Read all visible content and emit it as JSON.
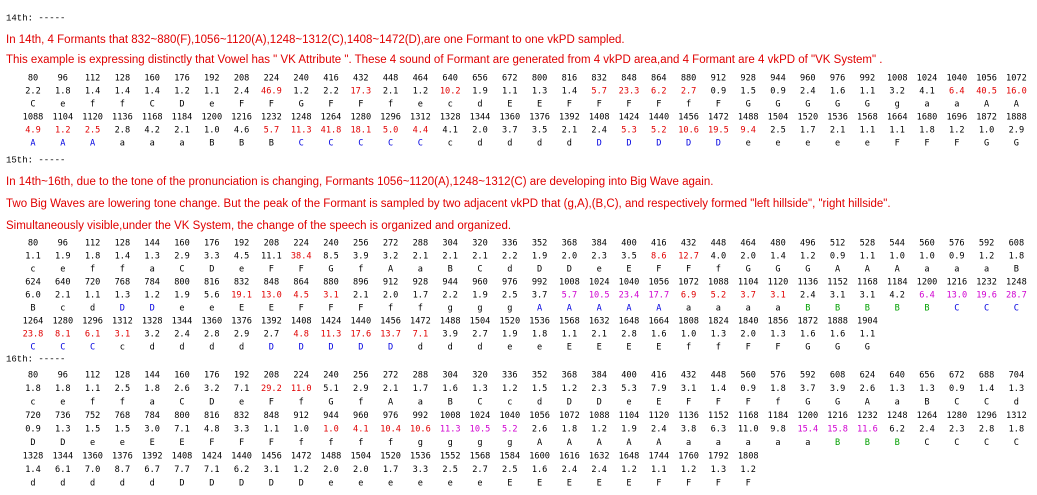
{
  "palette": {
    "k": "#000000",
    "r": "#e00000",
    "b": "#0000e0",
    "m": "#d000d0",
    "g": "#00a000"
  },
  "blocks": [
    {
      "label": "14th: -----",
      "notes": [
        "In 14th, 4 Formants that 832~880(F),1056~1120(A),1248~1312(C),1408~1472(D),are one Formant to one vkPD sampled.",
        "This example is expressing distinctly that Vowel has \" VK Attribute \". These 4 sound of Formant are generated from 4 vkPD area,and 4 Formant are 4 vkPD of \"VK System\" ."
      ],
      "rows": [
        {
          "cells": [
            "80",
            "96",
            "112",
            "128",
            "160",
            "176",
            "192",
            "208",
            "224",
            "240",
            "416",
            "432",
            "448",
            "464",
            "640",
            "656",
            "672",
            "800",
            "816",
            "832",
            "848",
            "864",
            "880",
            "912",
            "928",
            "944",
            "960",
            "976",
            "992",
            "1008",
            "1024",
            "1040",
            "1056",
            "1072"
          ]
        },
        {
          "cells": [
            "2.2",
            "1.8",
            "1.4",
            "1.4",
            "1.4",
            "1.2",
            "1.1",
            "2.4",
            "46.9",
            "1.2",
            "2.2",
            "17.3",
            "2.1",
            "1.2",
            "10.2",
            "1.9",
            "1.1",
            "1.3",
            "1.4",
            "5.7",
            "23.3",
            "6.2",
            "2.7",
            "0.9",
            "1.5",
            "0.9",
            "2.4",
            "1.6",
            "1.1",
            "3.2",
            "4.1",
            "6.4",
            "40.5",
            "16.0"
          ],
          "colors": "kkkkkkkkrkkrkkrkkkkrrrrkkkkkkkkrrr"
        },
        {
          "cells": [
            "C",
            "e",
            "f",
            "f",
            "C",
            "D",
            "e",
            "F",
            "F",
            "G",
            "F",
            "F",
            "f",
            "e",
            "c",
            "d",
            "E",
            "E",
            "F",
            "F",
            "F",
            "F",
            "f",
            "F",
            "G",
            "G",
            "G",
            "G",
            "G",
            "g",
            "a",
            "a",
            "A",
            "A"
          ]
        },
        {
          "cells": [
            "1088",
            "1104",
            "1120",
            "1136",
            "1168",
            "1184",
            "1200",
            "1216",
            "1232",
            "1248",
            "1264",
            "1280",
            "1296",
            "1312",
            "1328",
            "1344",
            "1360",
            "1376",
            "1392",
            "1408",
            "1424",
            "1440",
            "1456",
            "1472",
            "1488",
            "1504",
            "1520",
            "1536",
            "1568",
            "1664",
            "1680",
            "1696",
            "1872",
            "1888"
          ]
        },
        {
          "cells": [
            "4.9",
            "1.2",
            "2.5",
            "2.8",
            "4.2",
            "2.1",
            "1.0",
            "4.6",
            "5.7",
            "11.3",
            "41.8",
            "18.1",
            "5.0",
            "4.4",
            "4.1",
            "2.0",
            "3.7",
            "3.5",
            "2.1",
            "2.4",
            "5.3",
            "5.2",
            "10.6",
            "19.5",
            "9.4",
            "2.5",
            "1.7",
            "2.1",
            "1.1",
            "1.1",
            "1.8",
            "1.2",
            "1.0",
            "2.9"
          ],
          "colors": "rrrkkkkkrrrrrrkkkkkkrrrrrkkkkkkkkk"
        },
        {
          "cells": [
            "A",
            "A",
            "A",
            "a",
            "a",
            "a",
            "B",
            "B",
            "B",
            "C",
            "C",
            "C",
            "C",
            "C",
            "c",
            "d",
            "d",
            "d",
            "d",
            "D",
            "D",
            "D",
            "D",
            "D",
            "e",
            "e",
            "e",
            "e",
            "e",
            "F",
            "F",
            "F",
            "G",
            "G"
          ],
          "colors": "bbbkkkkkkbbbbbkkkkkbbbbbkkkkkkkkkk"
        }
      ]
    },
    {
      "label": "15th: -----",
      "notes": [
        "In 14th~16th, due to the tone of the pronunciation is changing, Formants 1056~1120(A),1248~1312(C) are developing into Big Wave again.",
        "Two Big Waves are lowering tone change. But the peak of the Formant is sampled by two adjacent vkPD that (g,A),(B,C), and respectively formed \"left hillside\", \"right hillside\".",
        "Simultaneously visible,under the VK System, the change of the speech is organized and organized."
      ],
      "rows": [
        {
          "cells": [
            "80",
            "96",
            "112",
            "128",
            "144",
            "160",
            "176",
            "192",
            "208",
            "224",
            "240",
            "256",
            "272",
            "288",
            "304",
            "320",
            "336",
            "352",
            "368",
            "384",
            "400",
            "416",
            "432",
            "448",
            "464",
            "480",
            "496",
            "512",
            "528",
            "544",
            "560",
            "576",
            "592",
            "608"
          ]
        },
        {
          "cells": [
            "1.1",
            "1.9",
            "1.8",
            "1.4",
            "1.3",
            "2.9",
            "3.3",
            "4.5",
            "11.1",
            "38.4",
            "8.5",
            "3.9",
            "3.2",
            "2.1",
            "2.1",
            "2.1",
            "2.2",
            "1.9",
            "2.0",
            "2.3",
            "3.5",
            "8.6",
            "12.7",
            "4.0",
            "2.0",
            "1.4",
            "1.2",
            "0.9",
            "1.1",
            "1.0",
            "1.0",
            "0.9",
            "1.2",
            "1.8"
          ],
          "colors": "kkkkkkkkkrkkkkkkkkkkkrrkkkkkkkkkkk"
        },
        {
          "cells": [
            "c",
            "e",
            "f",
            "f",
            "a",
            "C",
            "D",
            "e",
            "F",
            "F",
            "G",
            "f",
            "A",
            "a",
            "B",
            "C",
            "d",
            "D",
            "D",
            "e",
            "E",
            "F",
            "F",
            "f",
            "G",
            "G",
            "G",
            "A",
            "A",
            "A",
            "a",
            "a",
            "a",
            "B"
          ]
        },
        {
          "cells": [
            "624",
            "640",
            "720",
            "768",
            "784",
            "800",
            "816",
            "832",
            "848",
            "864",
            "880",
            "896",
            "912",
            "928",
            "944",
            "960",
            "976",
            "992",
            "1008",
            "1024",
            "1040",
            "1056",
            "1072",
            "1088",
            "1104",
            "1120",
            "1136",
            "1152",
            "1168",
            "1184",
            "1200",
            "1216",
            "1232",
            "1248"
          ]
        },
        {
          "cells": [
            "6.0",
            "2.1",
            "1.1",
            "1.3",
            "1.2",
            "1.9",
            "5.6",
            "19.1",
            "13.0",
            "4.5",
            "3.1",
            "2.1",
            "2.0",
            "1.7",
            "2.2",
            "1.9",
            "2.5",
            "3.7",
            "5.7",
            "10.5",
            "23.4",
            "17.7",
            "6.9",
            "5.2",
            "3.7",
            "3.1",
            "2.4",
            "3.1",
            "3.1",
            "4.2",
            "6.4",
            "13.0",
            "19.6",
            "28.7"
          ],
          "colors": "kkkkkkkrrrrkkkkkkkmmmmrrrrkkkkmmmm"
        },
        {
          "cells": [
            "B",
            "c",
            "d",
            "D",
            "D",
            "e",
            "e",
            "E",
            "E",
            "F",
            "F",
            "F",
            "f",
            "f",
            "g",
            "g",
            "g",
            "A",
            "A",
            "A",
            "A",
            "A",
            "a",
            "a",
            "a",
            "a",
            "B",
            "B",
            "B",
            "B",
            "B",
            "C",
            "C",
            "C"
          ],
          "colors": "kkkbbkkkkkkkkkkkkbbbbbkkkkgggggbbb"
        },
        {
          "cells": [
            "1264",
            "1280",
            "1296",
            "1312",
            "1328",
            "1344",
            "1360",
            "1376",
            "1392",
            "1408",
            "1424",
            "1440",
            "1456",
            "1472",
            "1488",
            "1504",
            "1520",
            "1536",
            "1568",
            "1632",
            "1648",
            "1664",
            "1808",
            "1824",
            "1840",
            "1856",
            "1872",
            "1888",
            "1904"
          ]
        },
        {
          "cells": [
            "23.8",
            "8.1",
            "6.1",
            "3.1",
            "3.2",
            "2.4",
            "2.8",
            "2.9",
            "2.7",
            "4.8",
            "11.3",
            "17.6",
            "13.7",
            "7.1",
            "3.9",
            "2.7",
            "1.9",
            "1.8",
            "1.1",
            "2.1",
            "2.8",
            "1.6",
            "1.0",
            "1.3",
            "2.0",
            "1.3",
            "1.6",
            "1.6",
            "1.1"
          ],
          "colors": "rrrrkkkkkrrrrrkkkkkkkkkkkkkkk"
        },
        {
          "cells": [
            "C",
            "C",
            "C",
            "c",
            "d",
            "d",
            "d",
            "d",
            "D",
            "D",
            "D",
            "D",
            "D",
            "d",
            "d",
            "d",
            "e",
            "e",
            "E",
            "E",
            "E",
            "E",
            "f",
            "f",
            "F",
            "F",
            "G",
            "G",
            "G"
          ],
          "colors": "bbbkkkkkbbbbbkkkkkkkkkkkkkkkk"
        }
      ]
    },
    {
      "label": "16th: -----",
      "notes": [],
      "rows": [
        {
          "cells": [
            "80",
            "96",
            "112",
            "128",
            "144",
            "160",
            "176",
            "192",
            "208",
            "224",
            "240",
            "256",
            "272",
            "288",
            "304",
            "320",
            "336",
            "352",
            "368",
            "384",
            "400",
            "416",
            "432",
            "448",
            "560",
            "576",
            "592",
            "608",
            "624",
            "640",
            "656",
            "672",
            "688",
            "704"
          ]
        },
        {
          "cells": [
            "1.8",
            "1.8",
            "1.1",
            "2.5",
            "1.8",
            "2.6",
            "3.2",
            "7.1",
            "29.2",
            "11.0",
            "5.1",
            "2.9",
            "2.1",
            "1.7",
            "1.6",
            "1.3",
            "1.2",
            "1.5",
            "1.2",
            "2.3",
            "5.3",
            "7.9",
            "3.1",
            "1.4",
            "0.9",
            "1.8",
            "3.7",
            "3.9",
            "2.6",
            "1.3",
            "1.3",
            "0.9",
            "1.4",
            "1.3"
          ],
          "colors": "kkkkkkkkrrkkkkkkkkkkkkkkkkkkkkkkkk"
        },
        {
          "cells": [
            "c",
            "e",
            "f",
            "f",
            "a",
            "C",
            "D",
            "e",
            "F",
            "f",
            "G",
            "f",
            "A",
            "a",
            "B",
            "C",
            "c",
            "d",
            "D",
            "D",
            "e",
            "E",
            "F",
            "F",
            "F",
            "f",
            "G",
            "G",
            "A",
            "a",
            "B",
            "C",
            "C",
            "d"
          ]
        },
        {
          "cells": [
            "720",
            "736",
            "752",
            "768",
            "784",
            "800",
            "816",
            "832",
            "848",
            "912",
            "944",
            "960",
            "976",
            "992",
            "1008",
            "1024",
            "1040",
            "1056",
            "1072",
            "1088",
            "1104",
            "1120",
            "1136",
            "1152",
            "1168",
            "1184",
            "1200",
            "1216",
            "1232",
            "1248",
            "1264",
            "1280",
            "1296",
            "1312"
          ]
        },
        {
          "cells": [
            "0.9",
            "1.3",
            "1.5",
            "1.5",
            "3.0",
            "7.1",
            "4.8",
            "3.3",
            "1.1",
            "1.0",
            "1.0",
            "4.1",
            "10.4",
            "10.6",
            "11.3",
            "10.5",
            "5.2",
            "2.6",
            "1.8",
            "1.2",
            "1.9",
            "2.4",
            "3.8",
            "6.3",
            "11.0",
            "9.8",
            "15.4",
            "15.8",
            "11.6",
            "6.2",
            "2.4",
            "2.3",
            "2.8",
            "1.8"
          ],
          "colors": "kkkkkkkkkkrrrrmmmkkkkkkkkkmmmkkkkk"
        },
        {
          "cells": [
            "D",
            "D",
            "e",
            "e",
            "E",
            "E",
            "F",
            "F",
            "F",
            "f",
            "f",
            "f",
            "f",
            "g",
            "g",
            "g",
            "g",
            "A",
            "A",
            "A",
            "A",
            "A",
            "a",
            "a",
            "a",
            "a",
            "a",
            "B",
            "B",
            "B",
            "C",
            "C",
            "C",
            "C"
          ],
          "colors": "kkkkkkkkkkkkkkkkkkkkkkkkkkkgggkkkk"
        },
        {
          "cells": [
            "1328",
            "1344",
            "1360",
            "1376",
            "1392",
            "1408",
            "1424",
            "1440",
            "1456",
            "1472",
            "1488",
            "1504",
            "1520",
            "1536",
            "1552",
            "1568",
            "1584",
            "1600",
            "1616",
            "1632",
            "1648",
            "1744",
            "1760",
            "1792",
            "1808"
          ]
        },
        {
          "cells": [
            "1.4",
            "6.1",
            "7.0",
            "8.7",
            "6.7",
            "7.7",
            "7.1",
            "6.2",
            "3.1",
            "1.2",
            "2.0",
            "2.0",
            "1.7",
            "3.3",
            "2.5",
            "2.7",
            "2.5",
            "1.6",
            "2.4",
            "2.4",
            "1.2",
            "1.1",
            "1.2",
            "1.3",
            "1.2"
          ]
        },
        {
          "cells": [
            "d",
            "d",
            "d",
            "d",
            "d",
            "D",
            "D",
            "D",
            "D",
            "D",
            "e",
            "e",
            "e",
            "e",
            "e",
            "e",
            "E",
            "E",
            "E",
            "E",
            "E",
            "F",
            "F",
            "F",
            "F"
          ]
        }
      ]
    }
  ]
}
